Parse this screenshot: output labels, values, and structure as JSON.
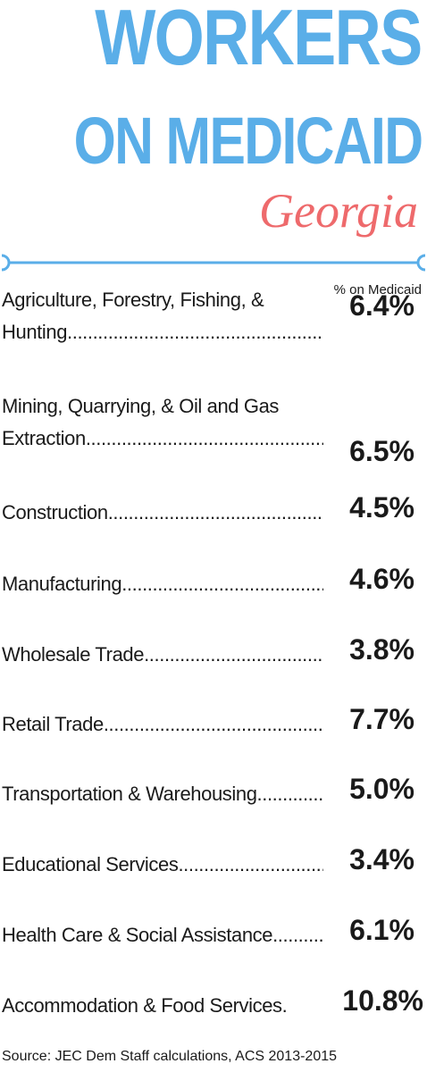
{
  "header": {
    "title_line1": "WORKERS",
    "title_line2": "ON MEDICAID",
    "subtitle": "Georgia",
    "column_header": "% on Medicaid"
  },
  "colors": {
    "title": "#5aaee8",
    "subtitle": "#ee6a6c",
    "divider": "#5aaee8",
    "text": "#1a1a1a"
  },
  "rows": [
    {
      "label_lines": [
        "Agriculture, Forestry, Fishing, &"
      ],
      "label_last": "Hunting",
      "value": "6.4%"
    },
    {
      "label_lines": [
        "Mining, Quarrying, & Oil and Gas"
      ],
      "label_last": "Extraction",
      "value": "6.5%"
    },
    {
      "label_lines": [],
      "label_last": "Construction",
      "value": "4.5%"
    },
    {
      "label_lines": [],
      "label_last": "Manufacturing",
      "value": "4.6%"
    },
    {
      "label_lines": [],
      "label_last": "Wholesale Trade",
      "value": "3.8%"
    },
    {
      "label_lines": [],
      "label_last": "Retail Trade",
      "value": "7.7%"
    },
    {
      "label_lines": [],
      "label_last": "Transportation & Warehousing",
      "value": "5.0%"
    },
    {
      "label_lines": [],
      "label_last": "Educational Services",
      "value": "3.4%"
    },
    {
      "label_lines": [],
      "label_last": "Health Care & Social Assistance",
      "value": "6.1%"
    },
    {
      "label_lines": [],
      "label_last": "Accommodation & Food Services.",
      "value": "10.8%"
    }
  ],
  "footer": {
    "source": "Source: JEC Dem Staff calculations, ACS 2013-2015"
  }
}
